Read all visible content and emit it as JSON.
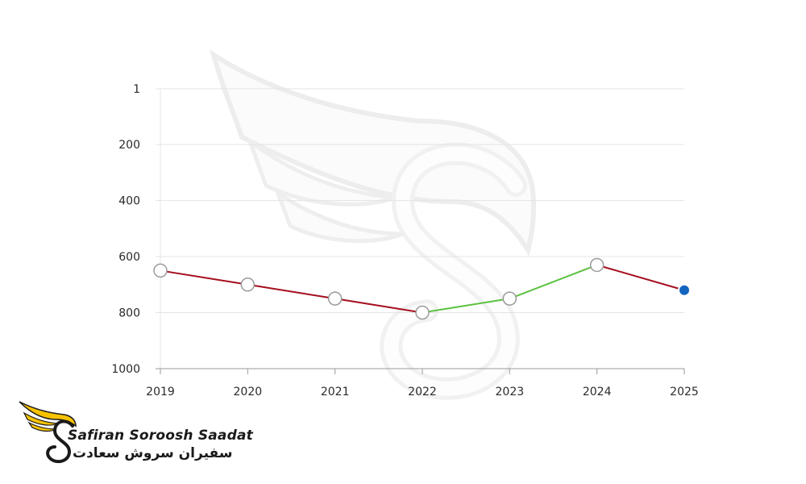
{
  "brand": {
    "name_en": "Safiran Soroosh Saadat",
    "name_fa": "سفیران سروش سعادت"
  },
  "colors": {
    "line_default": "#a50e1e",
    "line_up": "#5cc142",
    "marker_last": "#1565c0",
    "grid": "#e4e4e4",
    "axis": "#9a9a9a",
    "brand_wing": "#f6c200"
  },
  "chart_data": {
    "type": "line",
    "x": [
      "2019",
      "2020",
      "2021",
      "2022",
      "2023",
      "2024",
      "2025"
    ],
    "y_ticks": [
      "1",
      "200",
      "400",
      "600",
      "800",
      "1000"
    ],
    "y_tick_values": [
      1,
      200,
      400,
      600,
      800,
      1000
    ],
    "ylim": [
      1,
      1000
    ],
    "y_inverted": true,
    "series": [
      {
        "values": [
          650,
          700,
          750,
          800,
          750,
          630,
          720
        ]
      }
    ],
    "grid": true,
    "legend": "none"
  }
}
